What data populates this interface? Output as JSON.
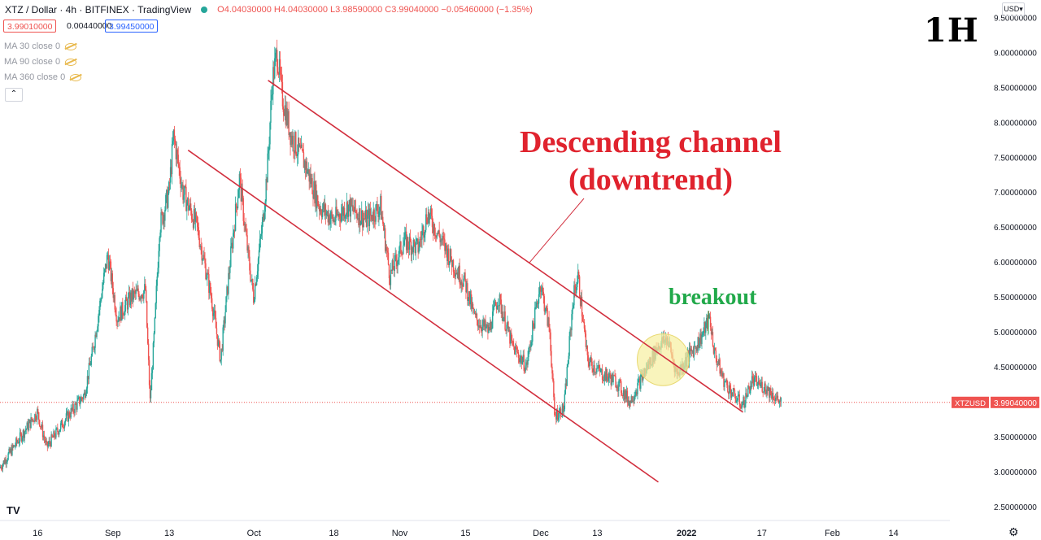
{
  "header": {
    "symbol": "XTZ / Dollar · 4h · BITFINEX · TradingView",
    "ohlc": "O4.04030000 H4.04030000 L3.98590000 C3.99040000 −0.05460000 (−1.35%)",
    "sell_price": "3.99010000",
    "spread": "0.00440000",
    "buy_price": "3.99450000"
  },
  "indicators": [
    "MA 30 close 0",
    "MA 90 close 0",
    "MA 360 close 0"
  ],
  "currency": "USD",
  "timeframe_label": "1H",
  "annotations": {
    "title_line1": "Descending channel",
    "title_line2": "(downtrend)",
    "breakout": "breakout"
  },
  "logo_text": "TV",
  "colors": {
    "up": "#26a69a",
    "down": "#ef5350",
    "channel": "#d22f3e",
    "annotation_red": "#e0232e",
    "annotation_green": "#21a94a",
    "highlight_fill": "#f6f0a0"
  },
  "chart_data": {
    "type": "candlestick",
    "symbol": "XTZUSD",
    "last_price": 3.9904,
    "last_price_label": "3.99040000",
    "ylim": [
      2.3,
      9.75
    ],
    "y_ticks": [
      2.5,
      3.0,
      3.5,
      4.0,
      4.5,
      5.0,
      5.5,
      6.0,
      6.5,
      7.0,
      7.5,
      8.0,
      8.5,
      9.0,
      9.5
    ],
    "y_tick_labels": [
      "2.50000000",
      "3.00000000",
      "3.50000000",
      "4.00000000",
      "4.50000000",
      "5.00000000",
      "5.50000000",
      "6.00000000",
      "6.50000000",
      "7.00000000",
      "7.50000000",
      "8.00000000",
      "8.50000000",
      "9.00000000",
      "9.50000000"
    ],
    "x_range": [
      "2021-08-08",
      "2022-02-26"
    ],
    "x_ticks": [
      {
        "date": "2021-08-16",
        "label": "16"
      },
      {
        "date": "2021-09-01",
        "label": "Sep"
      },
      {
        "date": "2021-09-13",
        "label": "13"
      },
      {
        "date": "2021-10-01",
        "label": "Oct"
      },
      {
        "date": "2021-10-18",
        "label": "18"
      },
      {
        "date": "2021-11-01",
        "label": "Nov"
      },
      {
        "date": "2021-11-15",
        "label": "15"
      },
      {
        "date": "2021-12-01",
        "label": "Dec"
      },
      {
        "date": "2021-12-13",
        "label": "13"
      },
      {
        "date": "2022-01-01",
        "label": "2022"
      },
      {
        "date": "2022-01-17",
        "label": "17"
      },
      {
        "date": "2022-02-01",
        "label": "Feb"
      },
      {
        "date": "2022-02-14",
        "label": "14"
      }
    ],
    "price_path": [
      [
        "2021-08-08",
        3.05
      ],
      [
        "2021-08-13",
        3.55
      ],
      [
        "2021-08-16",
        3.85
      ],
      [
        "2021-08-18",
        3.35
      ],
      [
        "2021-08-22",
        3.75
      ],
      [
        "2021-08-26",
        4.1
      ],
      [
        "2021-08-28",
        4.8
      ],
      [
        "2021-08-30",
        5.7
      ],
      [
        "2021-08-31",
        6.1
      ],
      [
        "2021-09-02",
        5.2
      ],
      [
        "2021-09-05",
        5.5
      ],
      [
        "2021-09-08",
        5.6
      ],
      [
        "2021-09-09",
        4.0
      ],
      [
        "2021-09-10",
        5.1
      ],
      [
        "2021-09-11",
        6.5
      ],
      [
        "2021-09-13",
        7.0
      ],
      [
        "2021-09-14",
        7.8
      ],
      [
        "2021-09-16",
        7.0
      ],
      [
        "2021-09-19",
        6.5
      ],
      [
        "2021-09-22",
        5.5
      ],
      [
        "2021-09-24",
        4.6
      ],
      [
        "2021-09-26",
        6.0
      ],
      [
        "2021-09-28",
        7.2
      ],
      [
        "2021-09-30",
        6.0
      ],
      [
        "2021-10-01",
        5.5
      ],
      [
        "2021-10-03",
        6.6
      ],
      [
        "2021-10-04",
        7.4
      ],
      [
        "2021-10-05",
        8.6
      ],
      [
        "2021-10-06",
        9.0
      ],
      [
        "2021-10-07",
        8.4
      ],
      [
        "2021-10-09",
        7.8
      ],
      [
        "2021-10-12",
        7.4
      ],
      [
        "2021-10-15",
        6.8
      ],
      [
        "2021-10-18",
        6.6
      ],
      [
        "2021-10-21",
        6.8
      ],
      [
        "2021-10-25",
        6.6
      ],
      [
        "2021-10-28",
        6.8
      ],
      [
        "2021-10-30",
        5.8
      ],
      [
        "2021-11-02",
        6.3
      ],
      [
        "2021-11-05",
        6.2
      ],
      [
        "2021-11-07",
        6.7
      ],
      [
        "2021-11-10",
        6.3
      ],
      [
        "2021-11-13",
        5.9
      ],
      [
        "2021-11-15",
        5.7
      ],
      [
        "2021-11-17",
        5.2
      ],
      [
        "2021-11-20",
        5.0
      ],
      [
        "2021-11-22",
        5.5
      ],
      [
        "2021-11-25",
        4.8
      ],
      [
        "2021-11-28",
        4.5
      ],
      [
        "2021-12-01",
        5.7
      ],
      [
        "2021-12-03",
        5.0
      ],
      [
        "2021-12-04",
        3.8
      ],
      [
        "2021-12-06",
        3.9
      ],
      [
        "2021-12-08",
        5.5
      ],
      [
        "2021-12-09",
        5.8
      ],
      [
        "2021-12-11",
        4.6
      ],
      [
        "2021-12-14",
        4.4
      ],
      [
        "2021-12-17",
        4.3
      ],
      [
        "2021-12-20",
        4.0
      ],
      [
        "2021-12-23",
        4.4
      ],
      [
        "2021-12-26",
        4.8
      ],
      [
        "2021-12-28",
        4.9
      ],
      [
        "2021-12-30",
        4.4
      ],
      [
        "2022-01-02",
        4.7
      ],
      [
        "2022-01-04",
        4.9
      ],
      [
        "2022-01-06",
        5.2
      ],
      [
        "2022-01-07",
        4.7
      ],
      [
        "2022-01-09",
        4.3
      ],
      [
        "2022-01-11",
        4.1
      ],
      [
        "2022-01-13",
        3.95
      ],
      [
        "2022-01-15",
        4.3
      ],
      [
        "2022-01-18",
        4.2
      ],
      [
        "2022-01-21",
        3.99
      ]
    ],
    "channel_lines": [
      {
        "name": "upper",
        "points": [
          [
            "2021-10-04",
            8.6
          ],
          [
            "2022-01-13",
            3.85
          ]
        ]
      },
      {
        "name": "lower",
        "points": [
          [
            "2021-09-17",
            7.6
          ],
          [
            "2021-12-26",
            2.85
          ]
        ]
      }
    ],
    "breakout_zone": {
      "center": [
        "2021-12-27",
        4.6
      ],
      "radius_days": 5.5
    },
    "grid": false,
    "legend": "none"
  }
}
